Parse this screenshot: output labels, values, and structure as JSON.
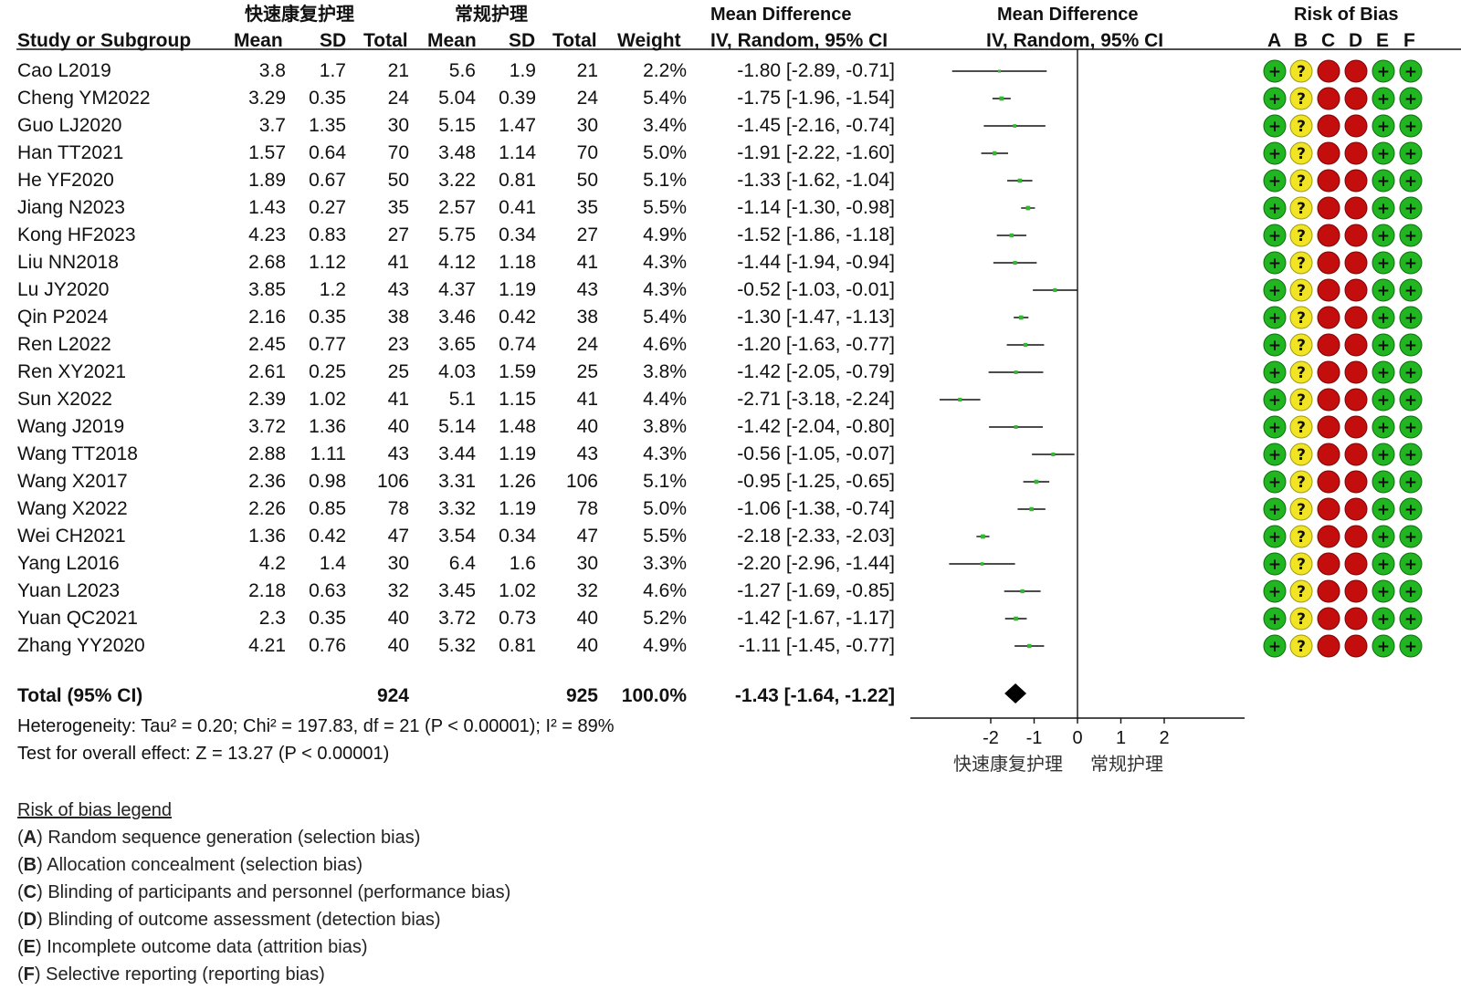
{
  "headers": {
    "exp_group": "快速康复护理",
    "ctl_group": "常规护理",
    "study": "Study or Subgroup",
    "mean": "Mean",
    "sd": "SD",
    "total": "Total",
    "weight": "Weight",
    "md_title": "Mean Difference",
    "md_sub": "IV, Random, 95% CI",
    "rob_title": "Risk of Bias",
    "rob_cols": [
      "A",
      "B",
      "C",
      "D",
      "E",
      "F"
    ]
  },
  "studies": [
    {
      "name": "Cao L2019",
      "e_mean": "3.8",
      "e_sd": "1.7",
      "e_n": "21",
      "c_mean": "5.6",
      "c_sd": "1.9",
      "c_n": "21",
      "weight": "2.2%",
      "ci_text": "-1.80 [-2.89, -0.71]"
    },
    {
      "name": "Cheng YM2022",
      "e_mean": "3.29",
      "e_sd": "0.35",
      "e_n": "24",
      "c_mean": "5.04",
      "c_sd": "0.39",
      "c_n": "24",
      "weight": "5.4%",
      "ci_text": "-1.75 [-1.96, -1.54]"
    },
    {
      "name": "Guo LJ2020",
      "e_mean": "3.7",
      "e_sd": "1.35",
      "e_n": "30",
      "c_mean": "5.15",
      "c_sd": "1.47",
      "c_n": "30",
      "weight": "3.4%",
      "ci_text": "-1.45 [-2.16, -0.74]"
    },
    {
      "name": "Han TT2021",
      "e_mean": "1.57",
      "e_sd": "0.64",
      "e_n": "70",
      "c_mean": "3.48",
      "c_sd": "1.14",
      "c_n": "70",
      "weight": "5.0%",
      "ci_text": "-1.91 [-2.22, -1.60]"
    },
    {
      "name": "He YF2020",
      "e_mean": "1.89",
      "e_sd": "0.67",
      "e_n": "50",
      "c_mean": "3.22",
      "c_sd": "0.81",
      "c_n": "50",
      "weight": "5.1%",
      "ci_text": "-1.33 [-1.62, -1.04]"
    },
    {
      "name": "Jiang N2023",
      "e_mean": "1.43",
      "e_sd": "0.27",
      "e_n": "35",
      "c_mean": "2.57",
      "c_sd": "0.41",
      "c_n": "35",
      "weight": "5.5%",
      "ci_text": "-1.14 [-1.30, -0.98]"
    },
    {
      "name": "Kong HF2023",
      "e_mean": "4.23",
      "e_sd": "0.83",
      "e_n": "27",
      "c_mean": "5.75",
      "c_sd": "0.34",
      "c_n": "27",
      "weight": "4.9%",
      "ci_text": "-1.52 [-1.86, -1.18]"
    },
    {
      "name": "Liu NN2018",
      "e_mean": "2.68",
      "e_sd": "1.12",
      "e_n": "41",
      "c_mean": "4.12",
      "c_sd": "1.18",
      "c_n": "41",
      "weight": "4.3%",
      "ci_text": "-1.44 [-1.94, -0.94]"
    },
    {
      "name": "Lu JY2020",
      "e_mean": "3.85",
      "e_sd": "1.2",
      "e_n": "43",
      "c_mean": "4.37",
      "c_sd": "1.19",
      "c_n": "43",
      "weight": "4.3%",
      "ci_text": "-0.52 [-1.03, -0.01]"
    },
    {
      "name": "Qin P2024",
      "e_mean": "2.16",
      "e_sd": "0.35",
      "e_n": "38",
      "c_mean": "3.46",
      "c_sd": "0.42",
      "c_n": "38",
      "weight": "5.4%",
      "ci_text": "-1.30 [-1.47, -1.13]"
    },
    {
      "name": "Ren L2022",
      "e_mean": "2.45",
      "e_sd": "0.77",
      "e_n": "23",
      "c_mean": "3.65",
      "c_sd": "0.74",
      "c_n": "24",
      "weight": "4.6%",
      "ci_text": "-1.20 [-1.63, -0.77]"
    },
    {
      "name": "Ren XY2021",
      "e_mean": "2.61",
      "e_sd": "0.25",
      "e_n": "25",
      "c_mean": "4.03",
      "c_sd": "1.59",
      "c_n": "25",
      "weight": "3.8%",
      "ci_text": "-1.42 [-2.05, -0.79]"
    },
    {
      "name": "Sun X2022",
      "e_mean": "2.39",
      "e_sd": "1.02",
      "e_n": "41",
      "c_mean": "5.1",
      "c_sd": "1.15",
      "c_n": "41",
      "weight": "4.4%",
      "ci_text": "-2.71 [-3.18, -2.24]"
    },
    {
      "name": "Wang J2019",
      "e_mean": "3.72",
      "e_sd": "1.36",
      "e_n": "40",
      "c_mean": "5.14",
      "c_sd": "1.48",
      "c_n": "40",
      "weight": "3.8%",
      "ci_text": "-1.42 [-2.04, -0.80]"
    },
    {
      "name": "Wang TT2018",
      "e_mean": "2.88",
      "e_sd": "1.11",
      "e_n": "43",
      "c_mean": "3.44",
      "c_sd": "1.19",
      "c_n": "43",
      "weight": "4.3%",
      "ci_text": "-0.56 [-1.05, -0.07]"
    },
    {
      "name": "Wang X2017",
      "e_mean": "2.36",
      "e_sd": "0.98",
      "e_n": "106",
      "c_mean": "3.31",
      "c_sd": "1.26",
      "c_n": "106",
      "weight": "5.1%",
      "ci_text": "-0.95 [-1.25, -0.65]"
    },
    {
      "name": "Wang X2022",
      "e_mean": "2.26",
      "e_sd": "0.85",
      "e_n": "78",
      "c_mean": "3.32",
      "c_sd": "1.19",
      "c_n": "78",
      "weight": "5.0%",
      "ci_text": "-1.06 [-1.38, -0.74]"
    },
    {
      "name": "Wei CH2021",
      "e_mean": "1.36",
      "e_sd": "0.42",
      "e_n": "47",
      "c_mean": "3.54",
      "c_sd": "0.34",
      "c_n": "47",
      "weight": "5.5%",
      "ci_text": "-2.18 [-2.33, -2.03]"
    },
    {
      "name": "Yang L2016",
      "e_mean": "4.2",
      "e_sd": "1.4",
      "e_n": "30",
      "c_mean": "6.4",
      "c_sd": "1.6",
      "c_n": "30",
      "weight": "3.3%",
      "ci_text": "-2.20 [-2.96, -1.44]"
    },
    {
      "name": "Yuan L2023",
      "e_mean": "2.18",
      "e_sd": "0.63",
      "e_n": "32",
      "c_mean": "3.45",
      "c_sd": "1.02",
      "c_n": "32",
      "weight": "4.6%",
      "ci_text": "-1.27 [-1.69, -0.85]"
    },
    {
      "name": "Yuan QC2021",
      "e_mean": "2.3",
      "e_sd": "0.35",
      "e_n": "40",
      "c_mean": "3.72",
      "c_sd": "0.73",
      "c_n": "40",
      "weight": "5.2%",
      "ci_text": "-1.42 [-1.67, -1.17]"
    },
    {
      "name": "Zhang YY2020",
      "e_mean": "4.21",
      "e_sd": "0.76",
      "e_n": "40",
      "c_mean": "5.32",
      "c_sd": "0.81",
      "c_n": "40",
      "weight": "4.9%",
      "ci_text": "-1.11 [-1.45, -0.77]"
    }
  ],
  "total": {
    "label": "Total (95% CI)",
    "e_n": "924",
    "c_n": "925",
    "weight": "100.0%",
    "ci_text": "-1.43 [-1.64, -1.22]"
  },
  "heterogeneity": "Heterogeneity: Tau² = 0.20; Chi² = 197.83, df = 21 (P < 0.00001); I² = 89%",
  "overall_effect": "Test for overall effect: Z = 13.27 (P < 0.00001)",
  "axis": {
    "ticks": [
      "-2",
      "-1",
      "0",
      "1",
      "2"
    ],
    "favours_left": "快速康复护理",
    "favours_right": "常规护理"
  },
  "legend": {
    "title": "Risk of bias legend",
    "items": [
      {
        "key": "A",
        "text": "Random sequence generation (selection bias)"
      },
      {
        "key": "B",
        "text": "Allocation concealment (selection bias)"
      },
      {
        "key": "C",
        "text": "Blinding of participants and personnel (performance bias)"
      },
      {
        "key": "D",
        "text": "Blinding of outcome assessment (detection bias)"
      },
      {
        "key": "E",
        "text": "Incomplete outcome data (attrition bias)"
      },
      {
        "key": "F",
        "text": "Selective reporting (reporting bias)"
      }
    ]
  },
  "colors": {
    "low_risk": "#22b522",
    "unclear_risk": "#f0e425",
    "high_risk": "#c40d0d",
    "point": "#34b833"
  },
  "chart_data": {
    "type": "forest",
    "title": "Mean Difference IV, Random, 95% CI",
    "xlim": [
      -3.8,
      3.8
    ],
    "xticks": [
      -2,
      -1,
      0,
      1,
      2
    ],
    "studies": [
      {
        "name": "Cao L2019",
        "md": -1.8,
        "lo": -2.89,
        "hi": -0.71,
        "weight": 2.2,
        "rob": [
          "+",
          "?",
          "-",
          "-",
          "+",
          "+"
        ]
      },
      {
        "name": "Cheng YM2022",
        "md": -1.75,
        "lo": -1.96,
        "hi": -1.54,
        "weight": 5.4,
        "rob": [
          "+",
          "?",
          "-",
          "-",
          "+",
          "+"
        ]
      },
      {
        "name": "Guo LJ2020",
        "md": -1.45,
        "lo": -2.16,
        "hi": -0.74,
        "weight": 3.4,
        "rob": [
          "+",
          "?",
          "-",
          "-",
          "+",
          "+"
        ]
      },
      {
        "name": "Han TT2021",
        "md": -1.91,
        "lo": -2.22,
        "hi": -1.6,
        "weight": 5.0,
        "rob": [
          "+",
          "?",
          "-",
          "-",
          "+",
          "+"
        ]
      },
      {
        "name": "He YF2020",
        "md": -1.33,
        "lo": -1.62,
        "hi": -1.04,
        "weight": 5.1,
        "rob": [
          "+",
          "?",
          "-",
          "-",
          "+",
          "+"
        ]
      },
      {
        "name": "Jiang N2023",
        "md": -1.14,
        "lo": -1.3,
        "hi": -0.98,
        "weight": 5.5,
        "rob": [
          "+",
          "?",
          "-",
          "-",
          "+",
          "+"
        ]
      },
      {
        "name": "Kong HF2023",
        "md": -1.52,
        "lo": -1.86,
        "hi": -1.18,
        "weight": 4.9,
        "rob": [
          "+",
          "?",
          "-",
          "-",
          "+",
          "+"
        ]
      },
      {
        "name": "Liu NN2018",
        "md": -1.44,
        "lo": -1.94,
        "hi": -0.94,
        "weight": 4.3,
        "rob": [
          "+",
          "?",
          "-",
          "-",
          "+",
          "+"
        ]
      },
      {
        "name": "Lu JY2020",
        "md": -0.52,
        "lo": -1.03,
        "hi": -0.01,
        "weight": 4.3,
        "rob": [
          "+",
          "?",
          "-",
          "-",
          "+",
          "+"
        ]
      },
      {
        "name": "Qin P2024",
        "md": -1.3,
        "lo": -1.47,
        "hi": -1.13,
        "weight": 5.4,
        "rob": [
          "+",
          "?",
          "-",
          "-",
          "+",
          "+"
        ]
      },
      {
        "name": "Ren L2022",
        "md": -1.2,
        "lo": -1.63,
        "hi": -0.77,
        "weight": 4.6,
        "rob": [
          "+",
          "?",
          "-",
          "-",
          "+",
          "+"
        ]
      },
      {
        "name": "Ren XY2021",
        "md": -1.42,
        "lo": -2.05,
        "hi": -0.79,
        "weight": 3.8,
        "rob": [
          "+",
          "?",
          "-",
          "-",
          "+",
          "+"
        ]
      },
      {
        "name": "Sun X2022",
        "md": -2.71,
        "lo": -3.18,
        "hi": -2.24,
        "weight": 4.4,
        "rob": [
          "+",
          "?",
          "-",
          "-",
          "+",
          "+"
        ]
      },
      {
        "name": "Wang J2019",
        "md": -1.42,
        "lo": -2.04,
        "hi": -0.8,
        "weight": 3.8,
        "rob": [
          "+",
          "?",
          "-",
          "-",
          "+",
          "+"
        ]
      },
      {
        "name": "Wang TT2018",
        "md": -0.56,
        "lo": -1.05,
        "hi": -0.07,
        "weight": 4.3,
        "rob": [
          "+",
          "?",
          "-",
          "-",
          "+",
          "+"
        ]
      },
      {
        "name": "Wang X2017",
        "md": -0.95,
        "lo": -1.25,
        "hi": -0.65,
        "weight": 5.1,
        "rob": [
          "+",
          "?",
          "-",
          "-",
          "+",
          "+"
        ]
      },
      {
        "name": "Wang X2022",
        "md": -1.06,
        "lo": -1.38,
        "hi": -0.74,
        "weight": 5.0,
        "rob": [
          "+",
          "?",
          "-",
          "-",
          "+",
          "+"
        ]
      },
      {
        "name": "Wei CH2021",
        "md": -2.18,
        "lo": -2.33,
        "hi": -2.03,
        "weight": 5.5,
        "rob": [
          "+",
          "?",
          "-",
          "-",
          "+",
          "+"
        ]
      },
      {
        "name": "Yang L2016",
        "md": -2.2,
        "lo": -2.96,
        "hi": -1.44,
        "weight": 3.3,
        "rob": [
          "+",
          "?",
          "-",
          "-",
          "+",
          "+"
        ]
      },
      {
        "name": "Yuan L2023",
        "md": -1.27,
        "lo": -1.69,
        "hi": -0.85,
        "weight": 4.6,
        "rob": [
          "+",
          "?",
          "-",
          "-",
          "+",
          "+"
        ]
      },
      {
        "name": "Yuan QC2021",
        "md": -1.42,
        "lo": -1.67,
        "hi": -1.17,
        "weight": 5.2,
        "rob": [
          "+",
          "?",
          "-",
          "-",
          "+",
          "+"
        ]
      },
      {
        "name": "Zhang YY2020",
        "md": -1.11,
        "lo": -1.45,
        "hi": -0.77,
        "weight": 4.9,
        "rob": [
          "+",
          "?",
          "-",
          "-",
          "+",
          "+"
        ]
      }
    ],
    "pooled": {
      "md": -1.43,
      "lo": -1.64,
      "hi": -1.22
    },
    "rob_legend": {
      "+": "low risk",
      "?": "unclear risk",
      "-": "high risk"
    }
  }
}
